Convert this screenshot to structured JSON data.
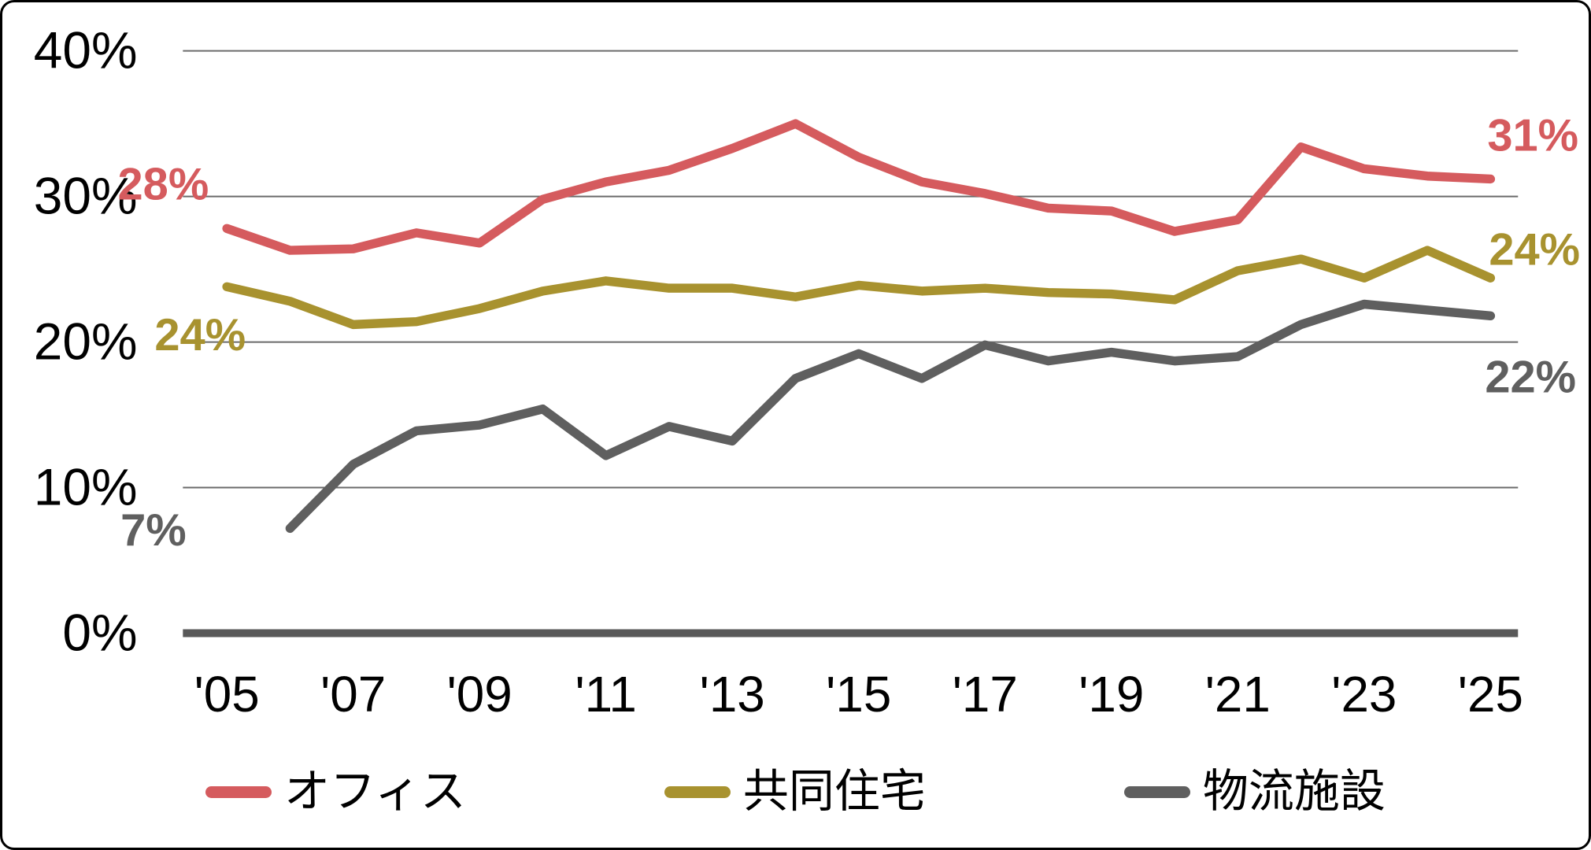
{
  "chart": {
    "y_ticks": [
      {
        "label": "40%",
        "value": 40
      },
      {
        "label": "30%",
        "value": 30
      },
      {
        "label": "20%",
        "value": 20
      },
      {
        "label": "10%",
        "value": 10
      },
      {
        "label": "0%",
        "value": 0
      }
    ],
    "x_ticks": [
      {
        "label": "'05",
        "year": 2005
      },
      {
        "label": "'07",
        "year": 2007
      },
      {
        "label": "'09",
        "year": 2009
      },
      {
        "label": "'11",
        "year": 2011
      },
      {
        "label": "'13",
        "year": 2013
      },
      {
        "label": "'15",
        "year": 2015
      },
      {
        "label": "'17",
        "year": 2017
      },
      {
        "label": "'19",
        "year": 2019
      },
      {
        "label": "'21",
        "year": 2021
      },
      {
        "label": "'23",
        "year": 2023
      },
      {
        "label": "'25",
        "year": 2025
      }
    ]
  },
  "chart_data": {
    "type": "line",
    "x": [
      2005,
      2006,
      2007,
      2008,
      2009,
      2010,
      2011,
      2012,
      2013,
      2014,
      2015,
      2016,
      2017,
      2018,
      2019,
      2020,
      2021,
      2022,
      2023,
      2024,
      2025
    ],
    "series": [
      {
        "name": "オフィス",
        "key": "office",
        "color": "#D55B5E",
        "values": [
          27.8,
          26.3,
          26.4,
          27.5,
          26.8,
          29.8,
          31.0,
          31.8,
          33.3,
          35.0,
          32.7,
          31.0,
          30.2,
          29.2,
          29.0,
          27.6,
          28.4,
          33.4,
          31.9,
          31.4,
          31.2
        ],
        "start_label": "28%",
        "end_label": "31%"
      },
      {
        "name": "共同住宅",
        "key": "residential",
        "color": "#A8922F",
        "values": [
          23.8,
          22.8,
          21.2,
          21.4,
          22.3,
          23.5,
          24.2,
          23.7,
          23.7,
          23.1,
          23.9,
          23.5,
          23.7,
          23.4,
          23.3,
          22.9,
          24.9,
          25.7,
          24.4,
          26.3,
          24.4
        ],
        "start_label": "24%",
        "end_label": "24%"
      },
      {
        "name": "物流施設",
        "key": "logistics",
        "color": "#5F5F5F",
        "values": [
          null,
          7.2,
          11.6,
          13.9,
          14.3,
          15.4,
          12.2,
          14.2,
          13.2,
          17.5,
          19.2,
          17.5,
          19.8,
          18.7,
          19.3,
          18.7,
          19.0,
          21.2,
          22.6,
          22.2,
          21.8
        ],
        "start_label": "7%",
        "end_label": "22%"
      }
    ],
    "ylim": [
      0,
      40
    ],
    "y_tick_step": 10,
    "grid": "horizontal",
    "legend_position": "bottom"
  }
}
